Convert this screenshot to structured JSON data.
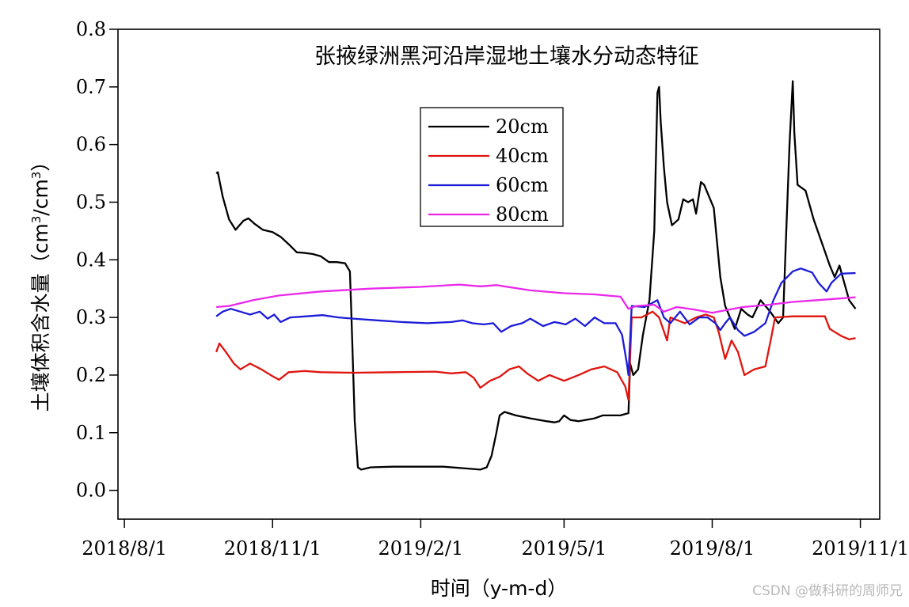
{
  "chart_data": {
    "type": "line",
    "title": "张掖绿洲黑河沿岸湿地土壤水分动态特征",
    "xlabel": "时间（y-m-d）",
    "ylabel": "土壤体积含水量（cm³/cm³）",
    "ylabel_parts": {
      "main": "土壤体积含水量（cm",
      "sup1": "3",
      "mid": "/cm",
      "sup2": "3",
      "end": "）"
    },
    "xlim": [
      "2018-07-28",
      "2019-11-13"
    ],
    "ylim": [
      -0.05,
      0.8
    ],
    "x_ticks": [
      {
        "date": "2018-08-01",
        "label": "2018/8/1"
      },
      {
        "date": "2018-11-01",
        "label": "2018/11/1"
      },
      {
        "date": "2019-02-01",
        "label": "2019/2/1"
      },
      {
        "date": "2019-05-01",
        "label": "2019/5/1"
      },
      {
        "date": "2019-08-01",
        "label": "2019/8/1"
      },
      {
        "date": "2019-11-01",
        "label": "2019/11/1"
      }
    ],
    "y_ticks": [
      {
        "value": 0.0,
        "label": "0.0"
      },
      {
        "value": 0.1,
        "label": "0.1"
      },
      {
        "value": 0.2,
        "label": "0.2"
      },
      {
        "value": 0.3,
        "label": "0.3"
      },
      {
        "value": 0.4,
        "label": "0.4"
      },
      {
        "value": 0.5,
        "label": "0.5"
      },
      {
        "value": 0.6,
        "label": "0.6"
      },
      {
        "value": 0.7,
        "label": "0.7"
      },
      {
        "value": 0.8,
        "label": "0.8"
      }
    ],
    "grid": false,
    "legend_position": "upper-center",
    "series": [
      {
        "name": "20cm",
        "color": "#000000",
        "points": [
          [
            "2018-09-27",
            0.55
          ],
          [
            "2018-09-28",
            0.552
          ],
          [
            "2018-10-01",
            0.51
          ],
          [
            "2018-10-05",
            0.47
          ],
          [
            "2018-10-09",
            0.452
          ],
          [
            "2018-10-14",
            0.468
          ],
          [
            "2018-10-17",
            0.472
          ],
          [
            "2018-10-21",
            0.462
          ],
          [
            "2018-10-26",
            0.452
          ],
          [
            "2018-11-01",
            0.448
          ],
          [
            "2018-11-06",
            0.44
          ],
          [
            "2018-11-11",
            0.427
          ],
          [
            "2018-11-16",
            0.413
          ],
          [
            "2018-11-21",
            0.412
          ],
          [
            "2018-11-26",
            0.41
          ],
          [
            "2018-12-01",
            0.406
          ],
          [
            "2018-12-06",
            0.396
          ],
          [
            "2018-12-11",
            0.396
          ],
          [
            "2018-12-16",
            0.394
          ],
          [
            "2018-12-19",
            0.38
          ],
          [
            "2018-12-20",
            0.3
          ],
          [
            "2018-12-22",
            0.12
          ],
          [
            "2018-12-24",
            0.04
          ],
          [
            "2018-12-26",
            0.036
          ],
          [
            "2019-01-01",
            0.04
          ],
          [
            "2019-01-15",
            0.041
          ],
          [
            "2019-02-01",
            0.041
          ],
          [
            "2019-02-15",
            0.041
          ],
          [
            "2019-03-01",
            0.038
          ],
          [
            "2019-03-10",
            0.036
          ],
          [
            "2019-03-14",
            0.04
          ],
          [
            "2019-03-17",
            0.06
          ],
          [
            "2019-03-20",
            0.1
          ],
          [
            "2019-03-22",
            0.13
          ],
          [
            "2019-03-25",
            0.136
          ],
          [
            "2019-04-01",
            0.13
          ],
          [
            "2019-04-10",
            0.125
          ],
          [
            "2019-04-20",
            0.12
          ],
          [
            "2019-04-25",
            0.118
          ],
          [
            "2019-04-28",
            0.12
          ],
          [
            "2019-05-01",
            0.13
          ],
          [
            "2019-05-05",
            0.122
          ],
          [
            "2019-05-10",
            0.12
          ],
          [
            "2019-05-20",
            0.125
          ],
          [
            "2019-05-25",
            0.13
          ],
          [
            "2019-06-05",
            0.13
          ],
          [
            "2019-06-10",
            0.134
          ],
          [
            "2019-06-11",
            0.22
          ],
          [
            "2019-06-13",
            0.2
          ],
          [
            "2019-06-16",
            0.21
          ],
          [
            "2019-06-19",
            0.27
          ],
          [
            "2019-06-23",
            0.33
          ],
          [
            "2019-06-26",
            0.45
          ],
          [
            "2019-06-28",
            0.69
          ],
          [
            "2019-06-29",
            0.7
          ],
          [
            "2019-06-30",
            0.64
          ],
          [
            "2019-07-02",
            0.56
          ],
          [
            "2019-07-04",
            0.5
          ],
          [
            "2019-07-07",
            0.46
          ],
          [
            "2019-07-11",
            0.47
          ],
          [
            "2019-07-14",
            0.505
          ],
          [
            "2019-07-17",
            0.5
          ],
          [
            "2019-07-20",
            0.505
          ],
          [
            "2019-07-22",
            0.48
          ],
          [
            "2019-07-25",
            0.535
          ],
          [
            "2019-07-27",
            0.53
          ],
          [
            "2019-07-30",
            0.51
          ],
          [
            "2019-08-02",
            0.49
          ],
          [
            "2019-08-04",
            0.43
          ],
          [
            "2019-08-06",
            0.37
          ],
          [
            "2019-08-09",
            0.32
          ],
          [
            "2019-08-12",
            0.3
          ],
          [
            "2019-08-15",
            0.28
          ],
          [
            "2019-08-19",
            0.315
          ],
          [
            "2019-08-23",
            0.305
          ],
          [
            "2019-08-26",
            0.3
          ],
          [
            "2019-08-31",
            0.33
          ],
          [
            "2019-09-03",
            0.32
          ],
          [
            "2019-09-06",
            0.31
          ],
          [
            "2019-09-11",
            0.29
          ],
          [
            "2019-09-14",
            0.3
          ],
          [
            "2019-09-16",
            0.45
          ],
          [
            "2019-09-18",
            0.6
          ],
          [
            "2019-09-20",
            0.71
          ],
          [
            "2019-09-21",
            0.62
          ],
          [
            "2019-09-23",
            0.53
          ],
          [
            "2019-09-28",
            0.52
          ],
          [
            "2019-10-03",
            0.47
          ],
          [
            "2019-10-08",
            0.43
          ],
          [
            "2019-10-13",
            0.39
          ],
          [
            "2019-10-16",
            0.37
          ],
          [
            "2019-10-19",
            0.39
          ],
          [
            "2019-10-21",
            0.37
          ],
          [
            "2019-10-25",
            0.33
          ],
          [
            "2019-10-29",
            0.315
          ]
        ]
      },
      {
        "name": "40cm",
        "color": "#e0140e",
        "points": [
          [
            "2018-09-27",
            0.24
          ],
          [
            "2018-09-29",
            0.255
          ],
          [
            "2018-10-03",
            0.24
          ],
          [
            "2018-10-08",
            0.22
          ],
          [
            "2018-10-12",
            0.21
          ],
          [
            "2018-10-18",
            0.22
          ],
          [
            "2018-10-25",
            0.21
          ],
          [
            "2018-11-01",
            0.198
          ],
          [
            "2018-11-05",
            0.192
          ],
          [
            "2018-11-11",
            0.205
          ],
          [
            "2018-11-21",
            0.207
          ],
          [
            "2018-12-01",
            0.205
          ],
          [
            "2018-12-21",
            0.204
          ],
          [
            "2019-01-15",
            0.205
          ],
          [
            "2019-02-10",
            0.206
          ],
          [
            "2019-02-20",
            0.203
          ],
          [
            "2019-03-01",
            0.205
          ],
          [
            "2019-03-06",
            0.195
          ],
          [
            "2019-03-10",
            0.178
          ],
          [
            "2019-03-16",
            0.19
          ],
          [
            "2019-03-22",
            0.197
          ],
          [
            "2019-03-28",
            0.21
          ],
          [
            "2019-04-03",
            0.215
          ],
          [
            "2019-04-08",
            0.203
          ],
          [
            "2019-04-15",
            0.19
          ],
          [
            "2019-04-22",
            0.2
          ],
          [
            "2019-05-01",
            0.19
          ],
          [
            "2019-05-10",
            0.2
          ],
          [
            "2019-05-18",
            0.21
          ],
          [
            "2019-05-26",
            0.215
          ],
          [
            "2019-06-03",
            0.205
          ],
          [
            "2019-06-08",
            0.18
          ],
          [
            "2019-06-10",
            0.157
          ],
          [
            "2019-06-12",
            0.3
          ],
          [
            "2019-06-18",
            0.3
          ],
          [
            "2019-06-25",
            0.31
          ],
          [
            "2019-06-29",
            0.3
          ],
          [
            "2019-07-04",
            0.26
          ],
          [
            "2019-07-06",
            0.3
          ],
          [
            "2019-07-15",
            0.29
          ],
          [
            "2019-07-22",
            0.3
          ],
          [
            "2019-07-28",
            0.305
          ],
          [
            "2019-08-02",
            0.3
          ],
          [
            "2019-08-05",
            0.275
          ],
          [
            "2019-08-09",
            0.228
          ],
          [
            "2019-08-13",
            0.26
          ],
          [
            "2019-08-17",
            0.24
          ],
          [
            "2019-08-21",
            0.2
          ],
          [
            "2019-08-27",
            0.21
          ],
          [
            "2019-09-03",
            0.215
          ],
          [
            "2019-09-07",
            0.27
          ],
          [
            "2019-09-09",
            0.3
          ],
          [
            "2019-09-20",
            0.302
          ],
          [
            "2019-10-10",
            0.302
          ],
          [
            "2019-10-13",
            0.28
          ],
          [
            "2019-10-20",
            0.268
          ],
          [
            "2019-10-25",
            0.262
          ],
          [
            "2019-10-29",
            0.264
          ]
        ]
      },
      {
        "name": "60cm",
        "color": "#1c1cd8",
        "points": [
          [
            "2018-09-27",
            0.302
          ],
          [
            "2018-10-01",
            0.31
          ],
          [
            "2018-10-06",
            0.315
          ],
          [
            "2018-10-12",
            0.31
          ],
          [
            "2018-10-18",
            0.305
          ],
          [
            "2018-10-24",
            0.31
          ],
          [
            "2018-10-29",
            0.298
          ],
          [
            "2018-11-02",
            0.305
          ],
          [
            "2018-11-06",
            0.292
          ],
          [
            "2018-11-12",
            0.3
          ],
          [
            "2018-11-22",
            0.302
          ],
          [
            "2018-12-02",
            0.304
          ],
          [
            "2018-12-12",
            0.3
          ],
          [
            "2018-12-21",
            0.298
          ],
          [
            "2019-01-05",
            0.295
          ],
          [
            "2019-01-20",
            0.292
          ],
          [
            "2019-02-05",
            0.29
          ],
          [
            "2019-02-20",
            0.292
          ],
          [
            "2019-02-27",
            0.295
          ],
          [
            "2019-03-05",
            0.29
          ],
          [
            "2019-03-12",
            0.288
          ],
          [
            "2019-03-18",
            0.29
          ],
          [
            "2019-03-23",
            0.275
          ],
          [
            "2019-03-29",
            0.285
          ],
          [
            "2019-04-05",
            0.29
          ],
          [
            "2019-04-10",
            0.298
          ],
          [
            "2019-04-18",
            0.285
          ],
          [
            "2019-04-25",
            0.292
          ],
          [
            "2019-05-02",
            0.288
          ],
          [
            "2019-05-08",
            0.298
          ],
          [
            "2019-05-14",
            0.285
          ],
          [
            "2019-05-20",
            0.3
          ],
          [
            "2019-05-26",
            0.29
          ],
          [
            "2019-06-02",
            0.29
          ],
          [
            "2019-06-06",
            0.27
          ],
          [
            "2019-06-09",
            0.22
          ],
          [
            "2019-06-10",
            0.2
          ],
          [
            "2019-06-12",
            0.32
          ],
          [
            "2019-06-20",
            0.318
          ],
          [
            "2019-06-28",
            0.33
          ],
          [
            "2019-07-02",
            0.3
          ],
          [
            "2019-07-06",
            0.29
          ],
          [
            "2019-07-12",
            0.31
          ],
          [
            "2019-07-18",
            0.288
          ],
          [
            "2019-07-24",
            0.3
          ],
          [
            "2019-07-29",
            0.3
          ],
          [
            "2019-08-03",
            0.29
          ],
          [
            "2019-08-06",
            0.278
          ],
          [
            "2019-08-09",
            0.29
          ],
          [
            "2019-08-12",
            0.3
          ],
          [
            "2019-08-17",
            0.278
          ],
          [
            "2019-08-21",
            0.268
          ],
          [
            "2019-08-27",
            0.275
          ],
          [
            "2019-09-03",
            0.29
          ],
          [
            "2019-09-08",
            0.33
          ],
          [
            "2019-09-13",
            0.36
          ],
          [
            "2019-09-20",
            0.38
          ],
          [
            "2019-09-25",
            0.385
          ],
          [
            "2019-10-02",
            0.378
          ],
          [
            "2019-10-06",
            0.36
          ],
          [
            "2019-10-11",
            0.345
          ],
          [
            "2019-10-14",
            0.36
          ],
          [
            "2019-10-20",
            0.376
          ],
          [
            "2019-10-29",
            0.377
          ]
        ]
      },
      {
        "name": "80cm",
        "color": "#ea28ea",
        "points": [
          [
            "2018-09-27",
            0.318
          ],
          [
            "2018-10-05",
            0.32
          ],
          [
            "2018-10-20",
            0.33
          ],
          [
            "2018-11-05",
            0.338
          ],
          [
            "2018-12-01",
            0.345
          ],
          [
            "2019-01-01",
            0.35
          ],
          [
            "2019-02-01",
            0.353
          ],
          [
            "2019-02-25",
            0.357
          ],
          [
            "2019-03-10",
            0.354
          ],
          [
            "2019-03-20",
            0.356
          ],
          [
            "2019-04-10",
            0.347
          ],
          [
            "2019-05-01",
            0.342
          ],
          [
            "2019-05-20",
            0.34
          ],
          [
            "2019-06-05",
            0.336
          ],
          [
            "2019-06-10",
            0.315
          ],
          [
            "2019-06-15",
            0.32
          ],
          [
            "2019-06-26",
            0.322
          ],
          [
            "2019-07-02",
            0.31
          ],
          [
            "2019-07-10",
            0.318
          ],
          [
            "2019-07-20",
            0.314
          ],
          [
            "2019-08-01",
            0.308
          ],
          [
            "2019-08-10",
            0.313
          ],
          [
            "2019-08-20",
            0.318
          ],
          [
            "2019-09-05",
            0.322
          ],
          [
            "2019-09-20",
            0.327
          ],
          [
            "2019-10-05",
            0.33
          ],
          [
            "2019-10-15",
            0.332
          ],
          [
            "2019-10-29",
            0.335
          ]
        ]
      }
    ]
  },
  "watermark": "CSDN @做科研的周师兄"
}
